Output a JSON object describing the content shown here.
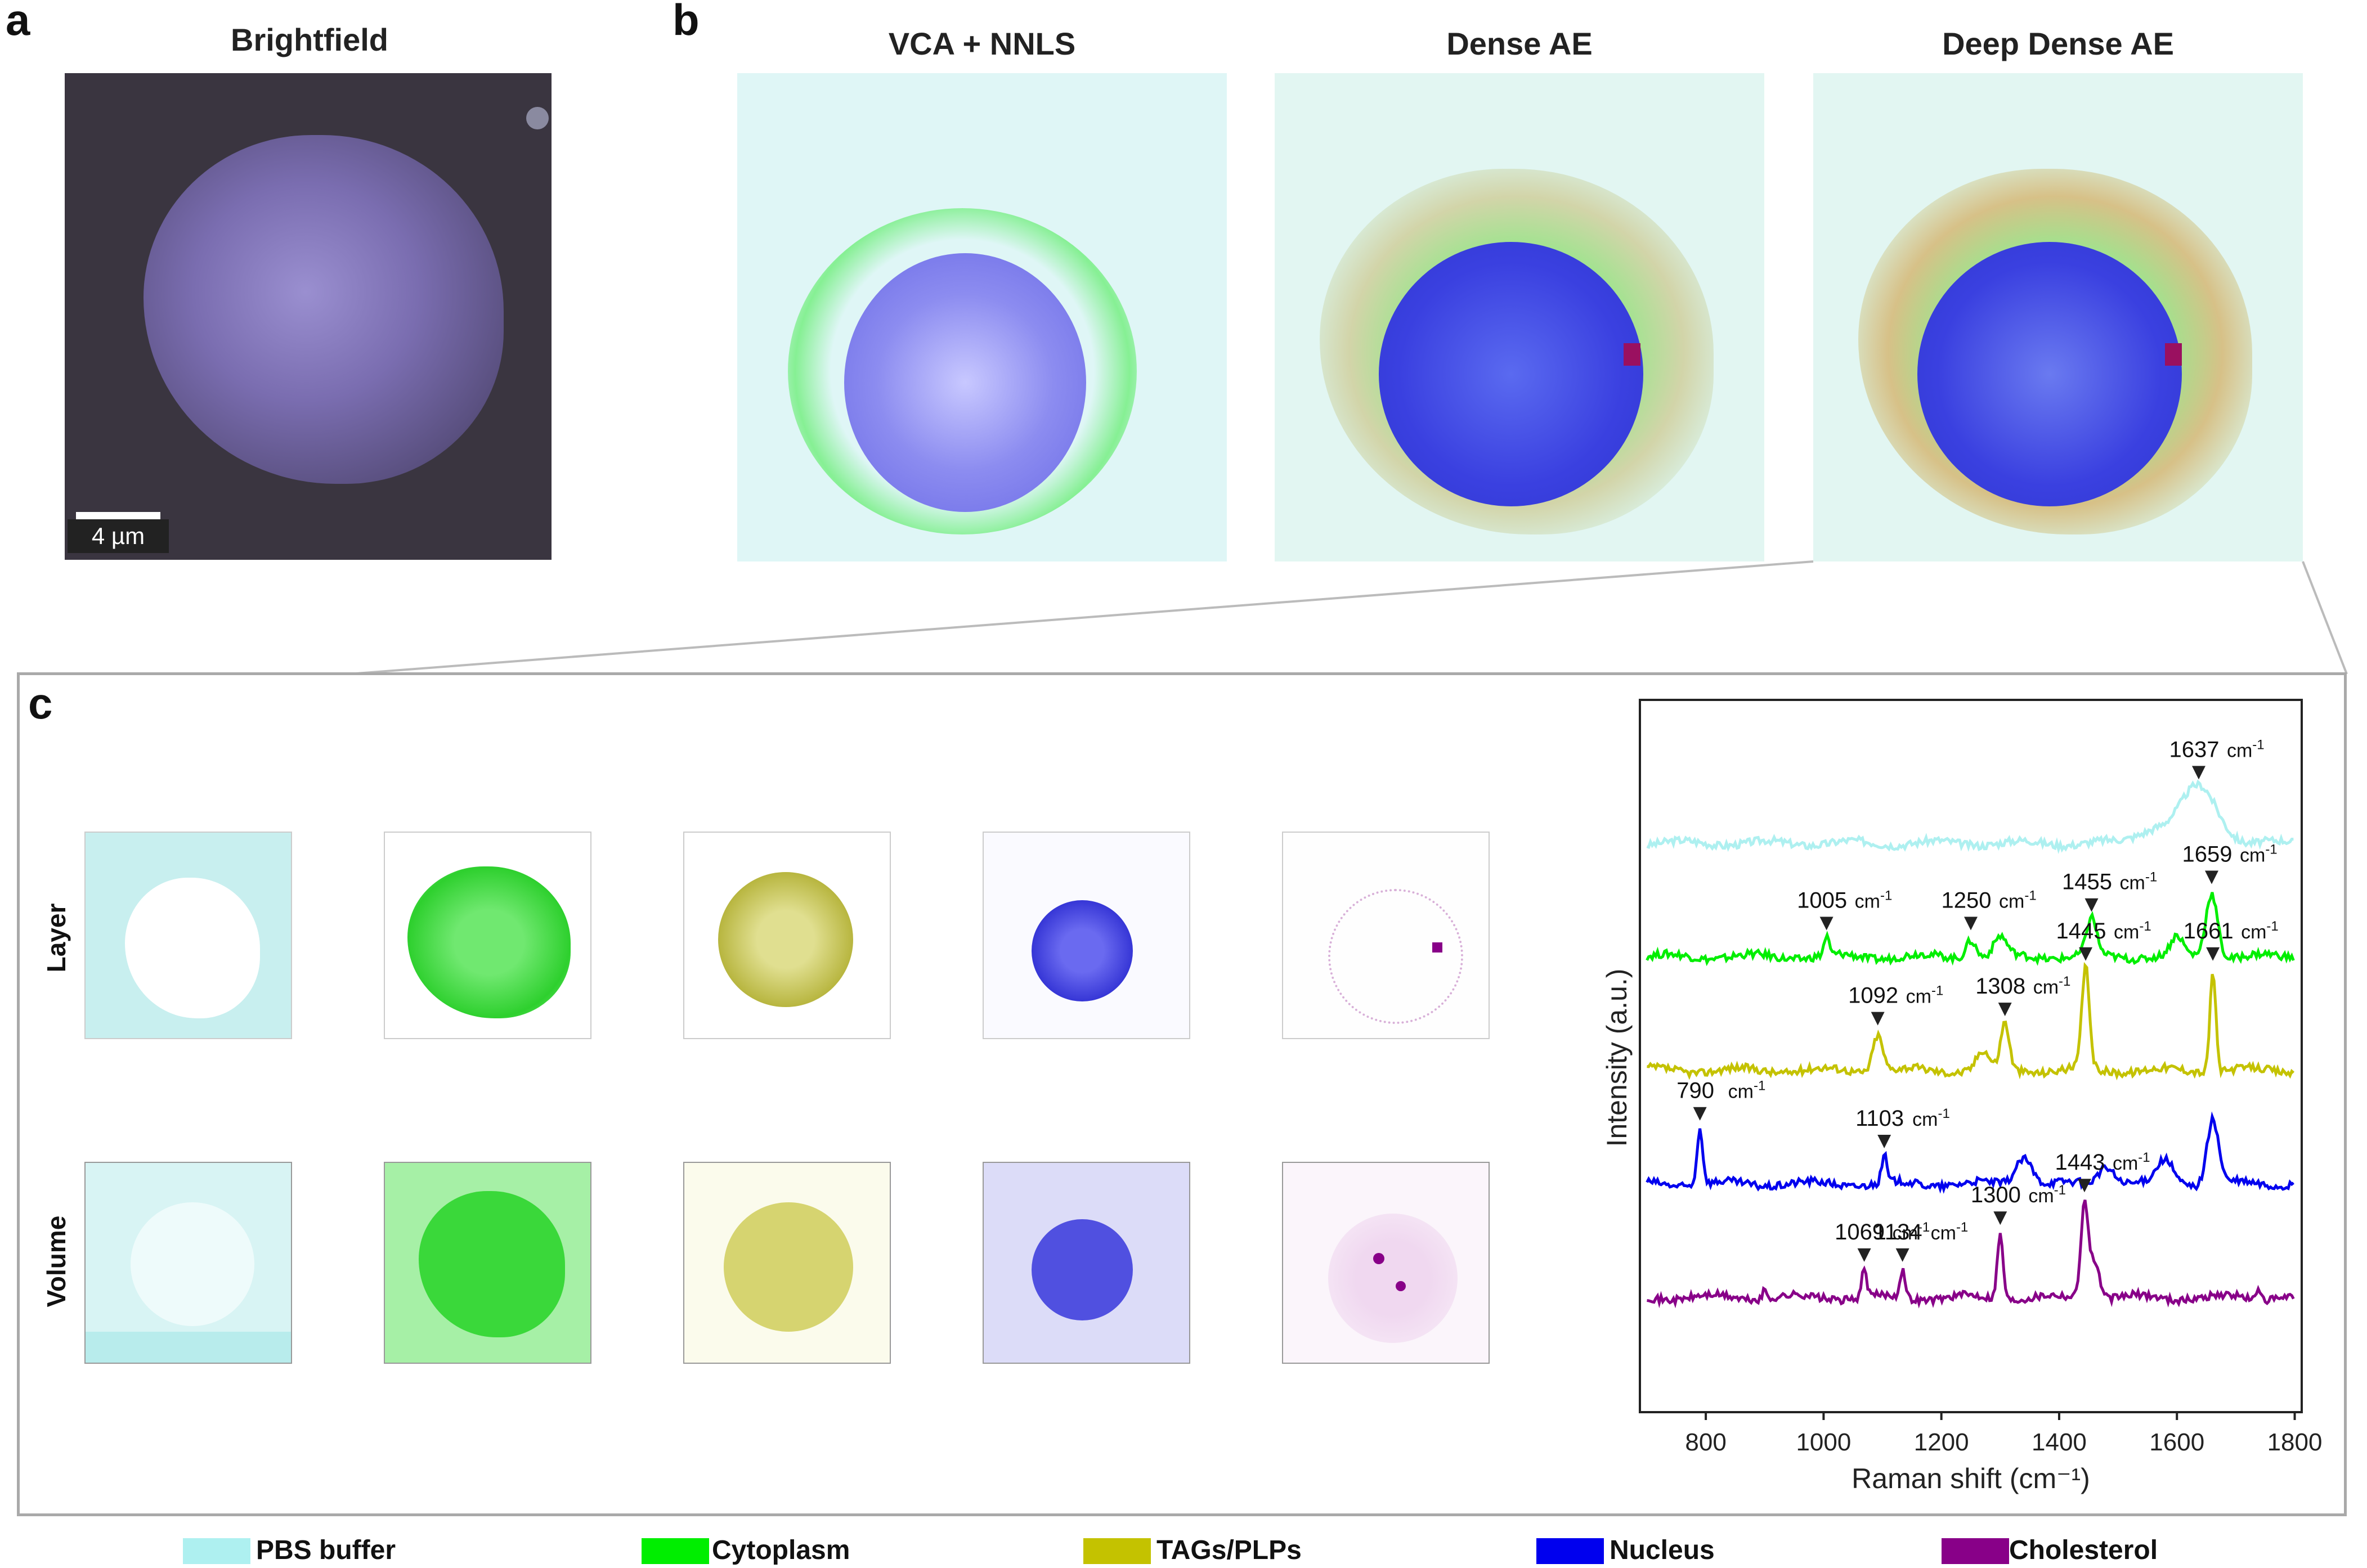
{
  "panels": {
    "a": {
      "label": "a",
      "title": "Brightfield",
      "scalebar": "4 µm"
    },
    "b": {
      "label": "b",
      "titles": [
        "VCA + NNLS",
        "Dense AE",
        "Deep Dense AE"
      ]
    },
    "c": {
      "label": "c",
      "row_labels": [
        "Layer",
        "Volume"
      ]
    }
  },
  "legend": [
    {
      "label": "PBS buffer",
      "color": "#aef0f0"
    },
    {
      "label": "Cytoplasm",
      "color": "#00ee00"
    },
    {
      "label": "TAGs/PLPs",
      "color": "#c4c200"
    },
    {
      "label": "Nucleus",
      "color": "#0000ee"
    },
    {
      "label": "Cholesterol",
      "color": "#880088"
    }
  ],
  "chart_data": {
    "type": "line",
    "title": "",
    "xlabel": "Raman shift (cm⁻¹)",
    "ylabel": "Intensity (a.u.)",
    "xlim": [
      690,
      1810
    ],
    "xticks": [
      800,
      1000,
      1200,
      1400,
      1600,
      1800
    ],
    "unit": "cm",
    "unit_sup": "-1",
    "series": [
      {
        "name": "PBS buffer",
        "color": "#aef0f0",
        "baseline": 0.06,
        "peaks": [
          {
            "x": 1637,
            "h": 0.06,
            "w": 45
          },
          {
            "x": 1560,
            "h": 0.015,
            "w": 40
          }
        ],
        "annotations": [
          {
            "x": 1637,
            "label": "1637"
          }
        ]
      },
      {
        "name": "Cytoplasm",
        "color": "#00ee00",
        "baseline": 0.26,
        "peaks": [
          {
            "x": 1005,
            "h": 0.02,
            "w": 6
          },
          {
            "x": 1250,
            "h": 0.02,
            "w": 12
          },
          {
            "x": 1300,
            "h": 0.02,
            "w": 15
          },
          {
            "x": 1455,
            "h": 0.04,
            "w": 12
          },
          {
            "x": 1600,
            "h": 0.02,
            "w": 15
          },
          {
            "x": 1659,
            "h": 0.07,
            "w": 14
          }
        ],
        "annotations": [
          {
            "x": 1005,
            "label": "1005"
          },
          {
            "x": 1250,
            "label": "1250"
          },
          {
            "x": 1455,
            "label": "1455"
          },
          {
            "x": 1659,
            "label": "1659"
          }
        ]
      },
      {
        "name": "TAGs/PLPs",
        "color": "#c4c200",
        "baseline": 0.46,
        "peaks": [
          {
            "x": 1092,
            "h": 0.04,
            "w": 12
          },
          {
            "x": 1270,
            "h": 0.02,
            "w": 15
          },
          {
            "x": 1308,
            "h": 0.05,
            "w": 10
          },
          {
            "x": 1445,
            "h": 0.11,
            "w": 9
          },
          {
            "x": 1661,
            "h": 0.11,
            "w": 7
          }
        ],
        "annotations": [
          {
            "x": 1092,
            "label": "1092"
          },
          {
            "x": 1308,
            "label": "1308"
          },
          {
            "x": 1445,
            "label": "1445"
          },
          {
            "x": 1661,
            "label": "1661"
          }
        ]
      },
      {
        "name": "Nucleus",
        "color": "#0000ee",
        "baseline": 0.66,
        "peaks": [
          {
            "x": 790,
            "h": 0.06,
            "w": 7
          },
          {
            "x": 1103,
            "h": 0.03,
            "w": 6
          },
          {
            "x": 1340,
            "h": 0.03,
            "w": 20
          },
          {
            "x": 1480,
            "h": 0.02,
            "w": 20
          },
          {
            "x": 1580,
            "h": 0.025,
            "w": 20
          },
          {
            "x": 1661,
            "h": 0.07,
            "w": 14
          }
        ],
        "annotations": [
          {
            "x": 790,
            "label": "790"
          },
          {
            "x": 1103,
            "label": "1103"
          }
        ]
      },
      {
        "name": "Cholesterol",
        "color": "#880088",
        "baseline": 0.86,
        "peaks": [
          {
            "x": 900,
            "h": 0.01,
            "w": 5
          },
          {
            "x": 1069,
            "h": 0.03,
            "w": 6
          },
          {
            "x": 1134,
            "h": 0.03,
            "w": 6
          },
          {
            "x": 1300,
            "h": 0.07,
            "w": 7
          },
          {
            "x": 1443,
            "h": 0.1,
            "w": 9
          },
          {
            "x": 1460,
            "h": 0.04,
            "w": 12
          },
          {
            "x": 1740,
            "h": 0.01,
            "w": 6
          }
        ],
        "annotations": [
          {
            "x": 1069,
            "label": "1069"
          },
          {
            "x": 1134,
            "label": "1134"
          },
          {
            "x": 1300,
            "label": "1300"
          },
          {
            "x": 1443,
            "label": "1443"
          }
        ]
      }
    ]
  }
}
